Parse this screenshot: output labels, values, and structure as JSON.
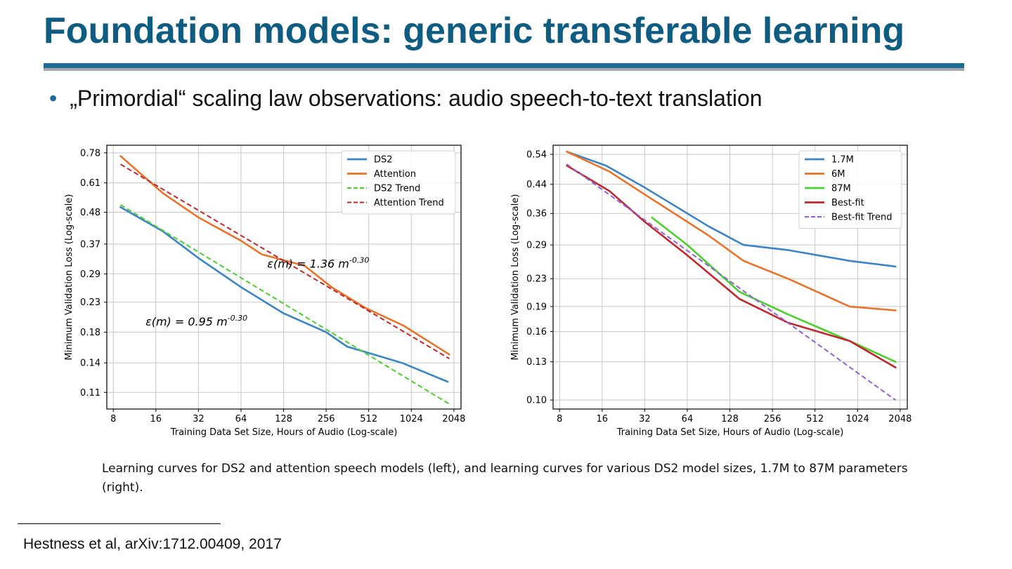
{
  "slide": {
    "title": "Foundation models: generic transferable learning",
    "bullet": "„Primordial“ scaling law observations: audio speech-to-text translation",
    "caption": "Learning curves for DS2 and attention speech models (left), and learning curves for various DS2 model sizes, 1.7M to 87M parameters (right).",
    "footnote": "Hestness et al, arXiv:1712.00409, 2017"
  },
  "colors": {
    "title": "#0f5c82",
    "rule_blue": "#1d6b97",
    "rule_gray": "#a6a6a6",
    "grid": "#c8c8c8"
  },
  "chart_data": [
    {
      "type": "line",
      "xlabel": "Training Data Set Size, Hours of Audio (Log-scale)",
      "ylabel": "Minimum Validation Loss (Log-scale)",
      "x_scale": "log2",
      "y_scale": "log",
      "xlim": [
        7.2,
        2300
      ],
      "ylim": [
        0.096,
        0.83
      ],
      "xticks": [
        8,
        16,
        32,
        64,
        128,
        256,
        512,
        1024,
        2048
      ],
      "xtick_labels": [
        "8",
        "16",
        "32",
        "64",
        "128",
        "256",
        "512",
        "1024",
        "2048"
      ],
      "yticks": [
        0.11,
        0.14,
        0.18,
        0.23,
        0.29,
        0.37,
        0.48,
        0.61,
        0.78
      ],
      "ytick_labels": [
        "0.11",
        "0.14",
        "0.18",
        "0.23",
        "0.29",
        "0.37",
        "0.48",
        "0.61",
        "0.78"
      ],
      "grid": true,
      "legend_position": "top-right",
      "series": [
        {
          "name": "DS2",
          "color": "#3b84c6",
          "dash": "solid",
          "x": [
            9,
            18,
            32,
            64,
            128,
            256,
            360,
            880,
            1850
          ],
          "y": [
            0.5,
            0.41,
            0.33,
            0.26,
            0.21,
            0.18,
            0.16,
            0.14,
            0.12
          ]
        },
        {
          "name": "Attention",
          "color": "#e8732a",
          "dash": "solid",
          "x": [
            9,
            18,
            32,
            64,
            90,
            180,
            280,
            480,
            900,
            1900
          ],
          "y": [
            0.76,
            0.56,
            0.46,
            0.38,
            0.34,
            0.31,
            0.26,
            0.22,
            0.19,
            0.15
          ]
        },
        {
          "name": "DS2 Trend",
          "color": "#4ccf2f",
          "dash": "dashed",
          "x": [
            9,
            1900
          ],
          "y": [
            0.51,
            0.1
          ]
        },
        {
          "name": "Attention Trend",
          "color": "#c0282d",
          "dash": "dashed",
          "x": [
            9,
            1900
          ],
          "y": [
            0.71,
            0.145
          ]
        }
      ],
      "annotations": [
        {
          "text": "ε(m) = 1.36 m",
          "superscript": "-0.30",
          "x": 225,
          "y": 0.305
        },
        {
          "text": "ε(m) = 0.95 m",
          "superscript": "-0.30",
          "x": 31,
          "y": 0.19
        }
      ]
    },
    {
      "type": "line",
      "xlabel": "Training Data Set Size, Hours of Audio (Log-scale)",
      "ylabel": "Minimum Validation Loss (Log-scale)",
      "x_scale": "log2",
      "y_scale": "log",
      "xlim": [
        7.2,
        2300
      ],
      "ylim": [
        0.094,
        0.575
      ],
      "xticks": [
        8,
        16,
        32,
        64,
        128,
        256,
        512,
        1024,
        2048
      ],
      "xtick_labels": [
        "8",
        "16",
        "32",
        "64",
        "128",
        "256",
        "512",
        "1024",
        "2048"
      ],
      "yticks": [
        0.1,
        0.13,
        0.16,
        0.19,
        0.23,
        0.29,
        0.36,
        0.44,
        0.54
      ],
      "ytick_labels": [
        "0.10",
        "0.13",
        "0.16",
        "0.19",
        "0.23",
        "0.29",
        "0.36",
        "0.44",
        "0.54"
      ],
      "grid": true,
      "legend_position": "top-right",
      "series": [
        {
          "name": "1.7M",
          "color": "#3b84c6",
          "dash": "solid",
          "x": [
            9,
            17,
            32,
            64,
            90,
            160,
            330,
            900,
            1900
          ],
          "y": [
            0.55,
            0.5,
            0.43,
            0.36,
            0.33,
            0.29,
            0.28,
            0.26,
            0.25
          ]
        },
        {
          "name": "6M",
          "color": "#e8732a",
          "dash": "solid",
          "x": [
            9,
            18,
            32,
            64,
            90,
            160,
            330,
            900,
            1900
          ],
          "y": [
            0.55,
            0.48,
            0.41,
            0.34,
            0.31,
            0.26,
            0.23,
            0.19,
            0.185
          ]
        },
        {
          "name": "87M",
          "color": "#4ccf2f",
          "dash": "solid",
          "x": [
            36,
            64,
            150,
            330,
            900,
            1900
          ],
          "y": [
            0.35,
            0.29,
            0.21,
            0.18,
            0.15,
            0.13
          ]
        },
        {
          "name": "Best-fit",
          "color": "#c0282d",
          "dash": "solid",
          "x": [
            9,
            18,
            32,
            64,
            150,
            330,
            900,
            1900
          ],
          "y": [
            0.5,
            0.42,
            0.34,
            0.27,
            0.2,
            0.17,
            0.15,
            0.125
          ]
        },
        {
          "name": "Best-fit Trend",
          "color": "#8f62d9",
          "dash": "dashed",
          "x": [
            9,
            1900
          ],
          "y": [
            0.505,
            0.1
          ]
        }
      ]
    }
  ]
}
